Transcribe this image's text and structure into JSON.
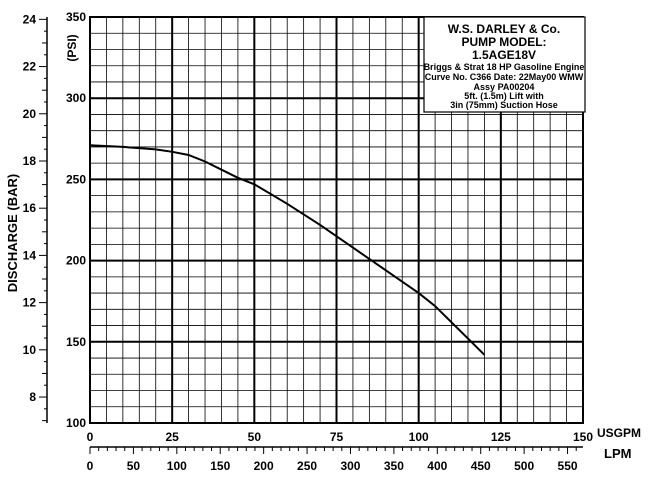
{
  "chart_data": {
    "type": "line",
    "title_lines": [
      "W.S. DARLEY & Co.",
      "PUMP MODEL:",
      "1.5AGE18V"
    ],
    "info_lines": [
      "Briggs & Strat 18 HP Gasoline Engine",
      "Curve No. C366 Date: 22May00 WMW",
      "Assy PA00204",
      "5ft. (1.5m) Lift with",
      "3in (75mm) Suction Hose"
    ],
    "left_axis_label": "DISCHARGE (BAR)",
    "psi_axis_label": "(PSI)",
    "x_primary_label": "USGPM",
    "x_secondary_label": "LPM",
    "xlim": [
      0,
      150
    ],
    "ylim_psi": [
      100,
      350
    ],
    "ylim_bar": [
      6.9,
      24.1
    ],
    "x_ticks_usgpm": [
      0,
      25,
      50,
      75,
      100,
      125,
      150
    ],
    "y_ticks_psi": [
      100,
      150,
      200,
      250,
      300,
      350
    ],
    "y_ticks_bar": [
      8,
      10,
      12,
      14,
      16,
      18,
      20,
      22,
      24
    ],
    "x_ticks_lpm": [
      0,
      50,
      100,
      150,
      200,
      250,
      300,
      350,
      400,
      450,
      500,
      550
    ],
    "grid": true,
    "series": [
      {
        "x": [
          0,
          10,
          20,
          25,
          30,
          35,
          40,
          45,
          50,
          60,
          70,
          80,
          90,
          100,
          105,
          110,
          115,
          120
        ],
        "y": [
          271,
          270,
          268.5,
          267,
          265,
          261,
          256,
          251,
          247,
          235,
          222,
          208,
          194,
          180,
          172,
          162,
          152,
          142
        ]
      }
    ]
  }
}
